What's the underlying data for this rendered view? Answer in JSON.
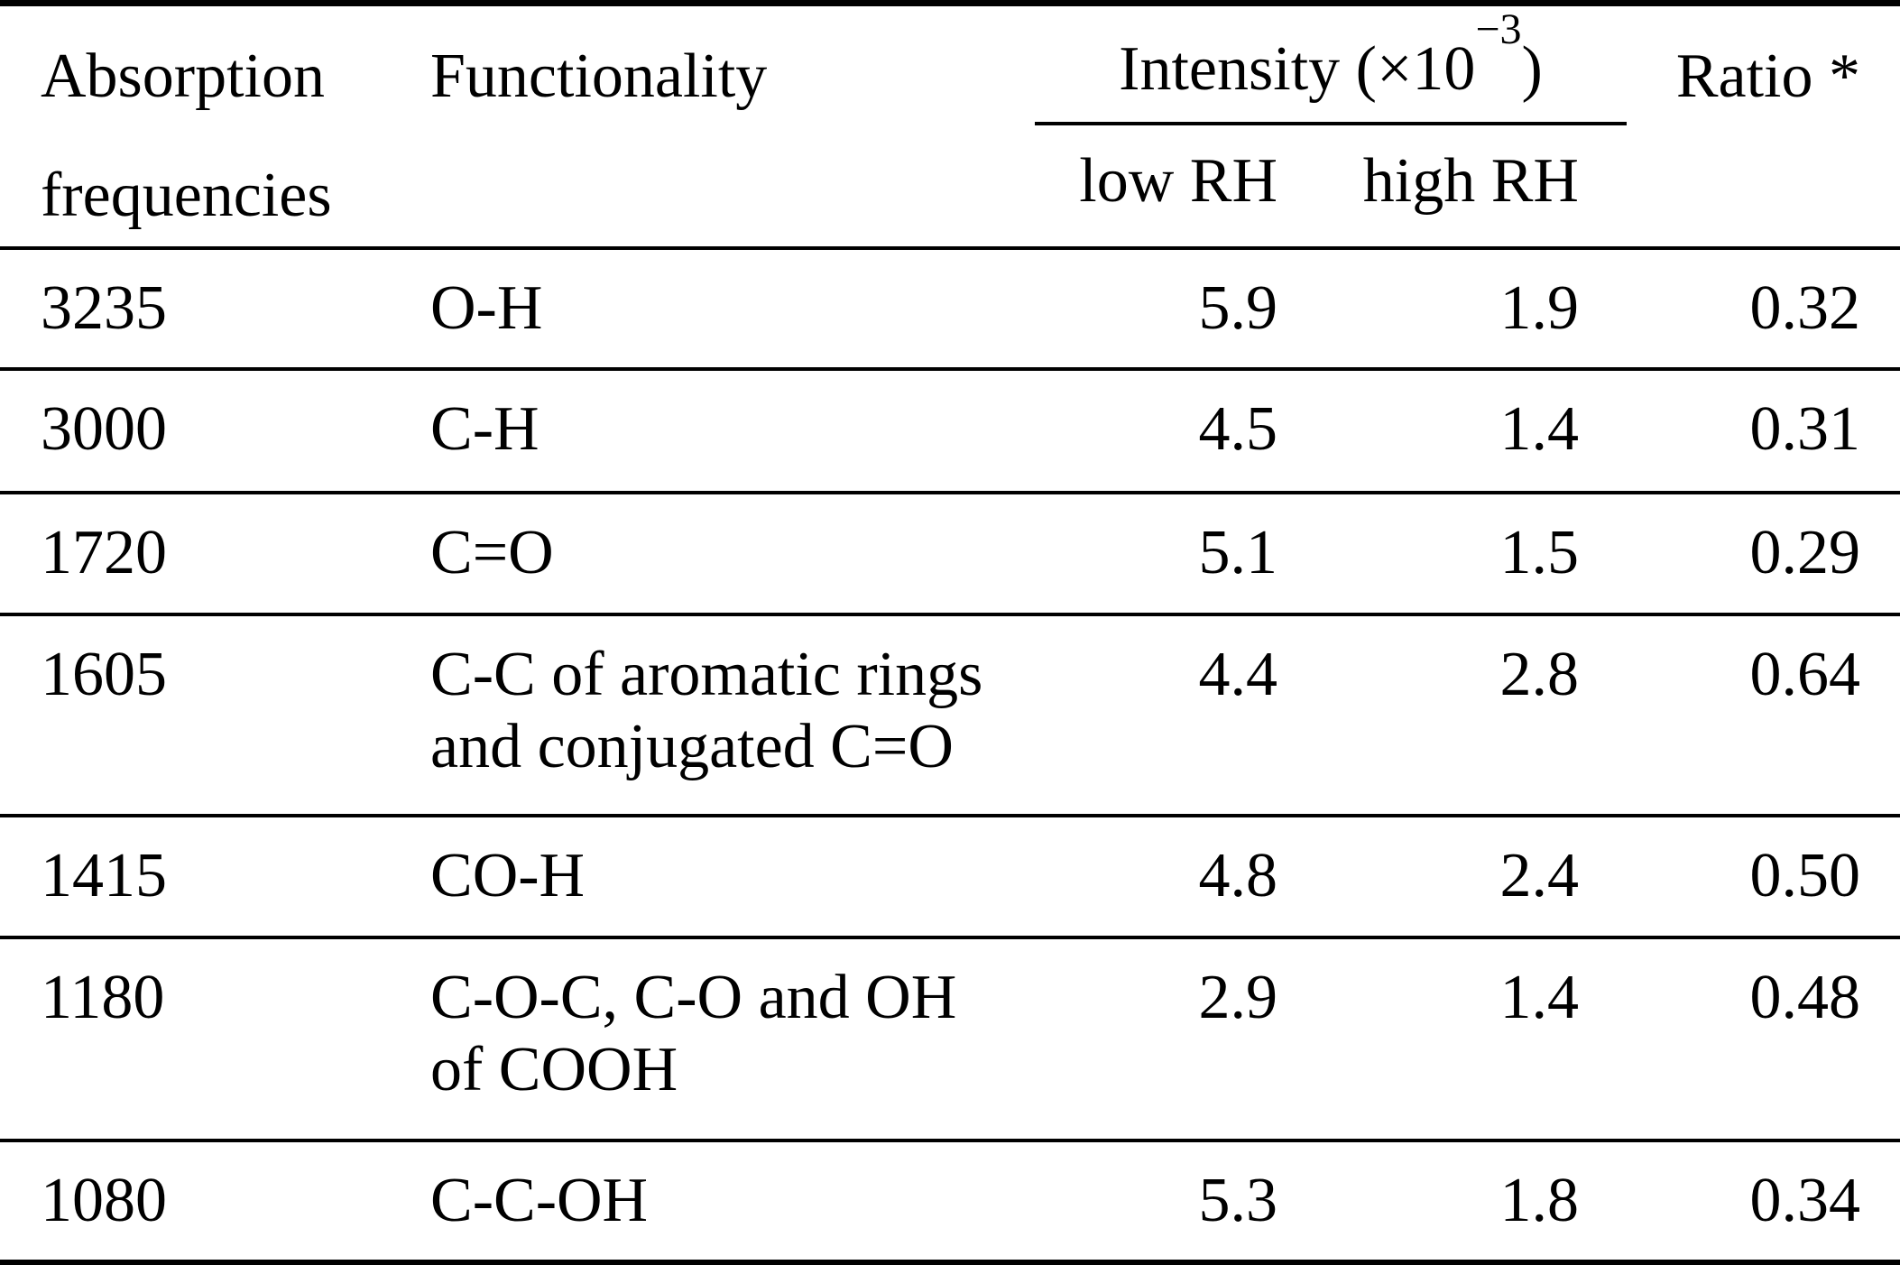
{
  "table": {
    "header": {
      "col1_line1": "Absorption",
      "col1_line2": "frequencies",
      "col2": "Functionality",
      "intensity_prefix": "Intensity (×10",
      "intensity_sup": "−3",
      "intensity_suffix": ")",
      "sub_low": "low RH",
      "sub_high": "high RH",
      "ratio": "Ratio *"
    },
    "rows": [
      {
        "freq": "3235",
        "functionality": [
          "O-H"
        ],
        "low_rh": "5.9",
        "high_rh": "1.9",
        "ratio": "0.32"
      },
      {
        "freq": "3000",
        "functionality": [
          "C-H"
        ],
        "low_rh": "4.5",
        "high_rh": "1.4",
        "ratio": "0.31"
      },
      {
        "freq": "1720",
        "functionality": [
          "C=O"
        ],
        "low_rh": "5.1",
        "high_rh": "1.5",
        "ratio": "0.29"
      },
      {
        "freq": "1605",
        "functionality": [
          "C-C of aromatic rings",
          "and conjugated C=O"
        ],
        "low_rh": "4.4",
        "high_rh": "2.8",
        "ratio": "0.64"
      },
      {
        "freq": "1415",
        "functionality": [
          "CO-H"
        ],
        "low_rh": "4.8",
        "high_rh": "2.4",
        "ratio": "0.50"
      },
      {
        "freq": "1180",
        "functionality": [
          "C-O-C, C-O and OH",
          "of COOH"
        ],
        "low_rh": "2.9",
        "high_rh": "1.4",
        "ratio": "0.48"
      },
      {
        "freq": "1080",
        "functionality": [
          "C-C-OH"
        ],
        "low_rh": "5.3",
        "high_rh": "1.8",
        "ratio": "0.34"
      }
    ],
    "colors": {
      "text": "#000000",
      "background": "#ffffff",
      "rule": "#000000"
    }
  },
  "chart_data": {
    "type": "table",
    "title": "",
    "columns": [
      "Absorption frequencies",
      "Functionality",
      "Intensity (x10^-3) low RH",
      "Intensity (x10^-3) high RH",
      "Ratio *"
    ],
    "categories": [
      "3235",
      "3000",
      "1720",
      "1605",
      "1415",
      "1180",
      "1080"
    ],
    "functionalities": [
      "O-H",
      "C-H",
      "C=O",
      "C-C of aromatic rings and conjugated C=O",
      "CO-H",
      "C-O-C, C-O and OH of COOH",
      "C-C-OH"
    ],
    "series": [
      {
        "name": "low RH",
        "values": [
          5.9,
          4.5,
          5.1,
          4.4,
          4.8,
          2.9,
          5.3
        ]
      },
      {
        "name": "high RH",
        "values": [
          1.9,
          1.4,
          1.5,
          2.8,
          2.4,
          1.4,
          1.8
        ]
      },
      {
        "name": "Ratio",
        "values": [
          0.32,
          0.31,
          0.29,
          0.64,
          0.5,
          0.48,
          0.34
        ]
      }
    ]
  }
}
